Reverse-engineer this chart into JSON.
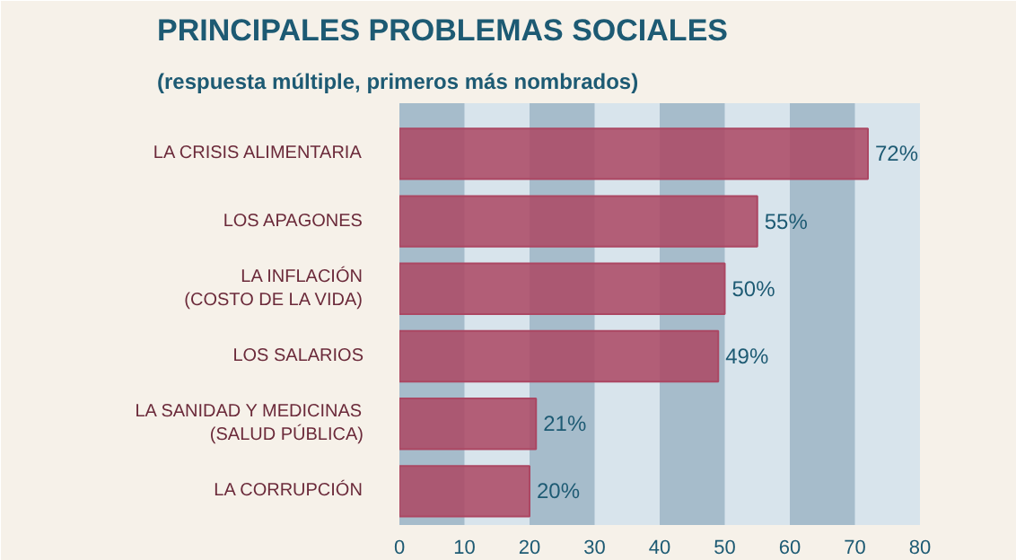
{
  "chart_data": {
    "type": "bar",
    "orientation": "horizontal",
    "title": "PRINCIPALES PROBLEMAS SOCIALES",
    "subtitle": "(respuesta múltiple, primeros más nombrados)",
    "categories": [
      "LA CRISIS ALIMENTARIA",
      "LOS APAGONES",
      "LA INFLACIÓN\n(COSTO DE LA VIDA)",
      "LOS SALARIOS",
      "LA SANIDAD Y MEDICINAS\n(SALUD PÚBLICA)",
      "LA CORRUPCIÓN"
    ],
    "values": [
      72,
      55,
      50,
      49,
      21,
      20
    ],
    "color": "#ab4763",
    "data_labels": true,
    "value_labels": [
      "72%",
      "55%",
      "50%",
      "49%",
      "21%",
      "20%"
    ],
    "xlim": [
      0,
      80
    ],
    "xticks": [
      0,
      10,
      20,
      30,
      40,
      50,
      60,
      70,
      80
    ],
    "grid": false,
    "bands": [
      {
        "axis": "x",
        "from": 0,
        "to": 10,
        "color": "#a6bccb"
      },
      {
        "axis": "x",
        "from": 20,
        "to": 30,
        "color": "#a6bccb"
      },
      {
        "axis": "x",
        "from": 40,
        "to": 50,
        "color": "#a6bccb"
      },
      {
        "axis": "x",
        "from": 60,
        "to": 70,
        "color": "#a6bccb"
      }
    ]
  }
}
